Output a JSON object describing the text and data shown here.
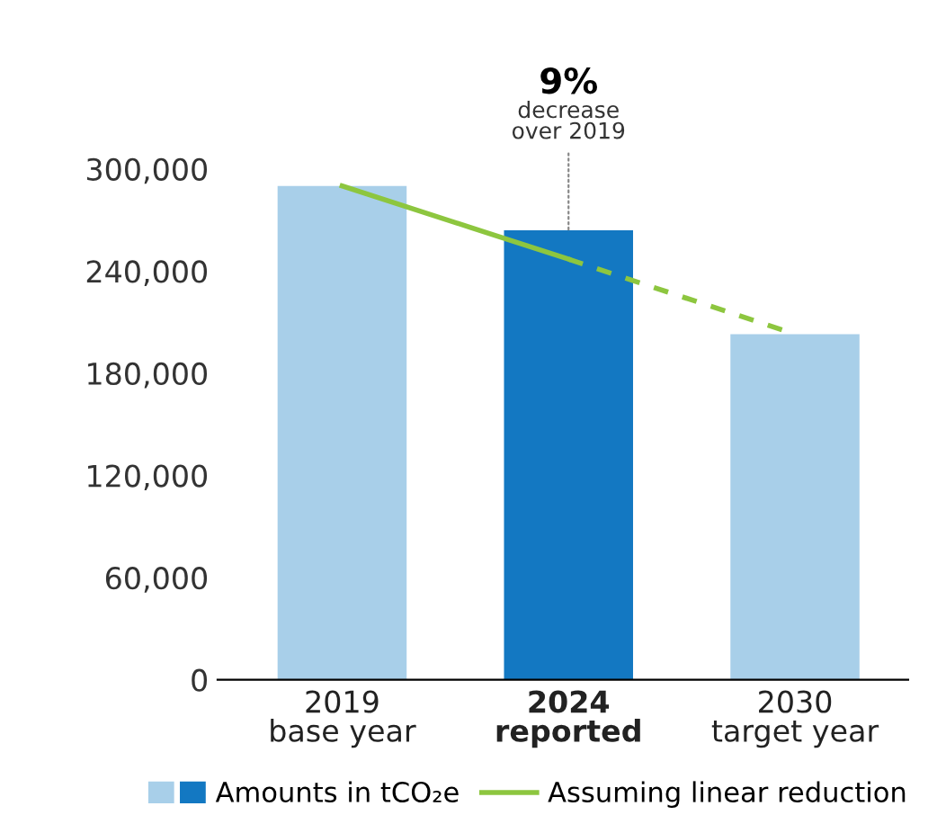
{
  "chart_data": {
    "type": "bar",
    "categories": [
      "2019\nbase year",
      "2024\nreported",
      "2030\ntarget year"
    ],
    "series": [
      {
        "name": "Amounts in tCO₂e",
        "colors": [
          "#a8cfe9",
          "#1378c2",
          "#a8cfe9"
        ],
        "values": [
          290000,
          264000,
          203000
        ]
      },
      {
        "name": "Assuming linear reduction",
        "type": "line",
        "color": "#8dc63f",
        "values": [
          290000,
          247000,
          203000
        ],
        "line_style": [
          "solid",
          "dashed"
        ]
      }
    ],
    "ylim": [
      0,
      300000
    ],
    "yticks": [
      {
        "value": 0,
        "label": "0"
      },
      {
        "value": 60000,
        "label": "60,000"
      },
      {
        "value": 120000,
        "label": "120,000"
      },
      {
        "value": 180000,
        "label": "180,000"
      },
      {
        "value": 240000,
        "label": "240,000"
      },
      {
        "value": 300000,
        "label": "300,000"
      }
    ],
    "annotations": [
      "9%",
      {
        "text": "decrease\nover 2019",
        "x": "2024\nreported",
        "y": 264000
      }
    ],
    "grid": false,
    "legend": "bottom"
  }
}
